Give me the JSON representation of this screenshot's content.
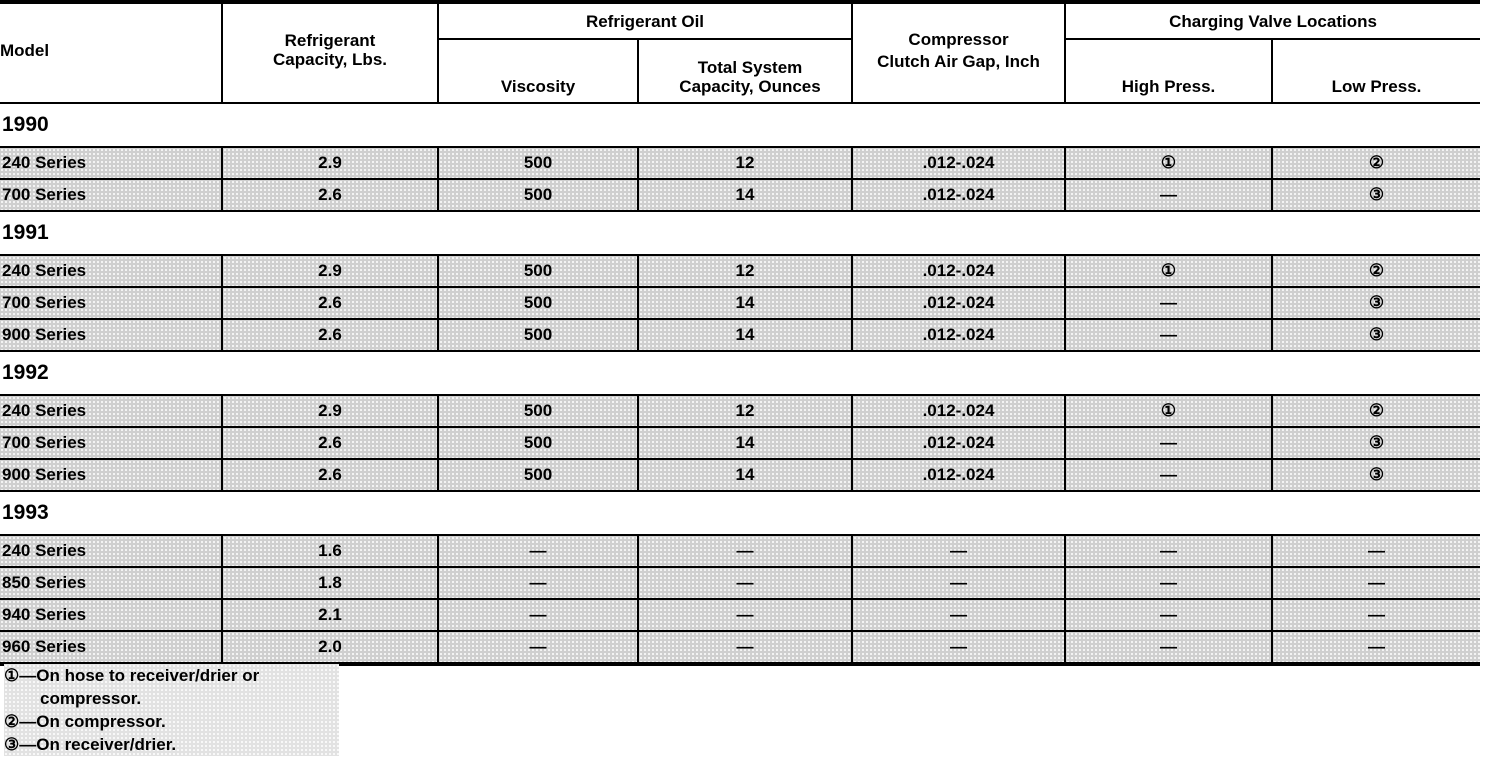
{
  "header": {
    "model": "Model",
    "refrigerant_capacity": "Refrigerant Capacity, Lbs.",
    "refrigerant_oil": "Refrigerant Oil",
    "viscosity": "Viscosity",
    "total_system_capacity": "Total System Capacity, Ounces",
    "compressor_line1": "Compressor",
    "compressor_line2": "Clutch Air Gap, Inch",
    "charging_valve_locations": "Charging Valve Locations",
    "high_press": "High Press.",
    "low_press": "Low Press."
  },
  "groups": [
    {
      "year": "1990",
      "rows": [
        [
          "240 Series",
          "2.9",
          "500",
          "12",
          ".012-.024",
          "①",
          "②"
        ],
        [
          "700 Series",
          "2.6",
          "500",
          "14",
          ".012-.024",
          "—",
          "③"
        ]
      ]
    },
    {
      "year": "1991",
      "rows": [
        [
          "240 Series",
          "2.9",
          "500",
          "12",
          ".012-.024",
          "①",
          "②"
        ],
        [
          "700 Series",
          "2.6",
          "500",
          "14",
          ".012-.024",
          "—",
          "③"
        ],
        [
          "900 Series",
          "2.6",
          "500",
          "14",
          ".012-.024",
          "—",
          "③"
        ]
      ]
    },
    {
      "year": "1992",
      "rows": [
        [
          "240 Series",
          "2.9",
          "500",
          "12",
          ".012-.024",
          "①",
          "②"
        ],
        [
          "700 Series",
          "2.6",
          "500",
          "14",
          ".012-.024",
          "—",
          "③"
        ],
        [
          "900 Series",
          "2.6",
          "500",
          "14",
          ".012-.024",
          "—",
          "③"
        ]
      ]
    },
    {
      "year": "1993",
      "rows": [
        [
          "240 Series",
          "1.6",
          "—",
          "—",
          "—",
          "—",
          "—"
        ],
        [
          "850 Series",
          "1.8",
          "—",
          "—",
          "—",
          "—",
          "—"
        ],
        [
          "940 Series",
          "2.1",
          "—",
          "—",
          "—",
          "—",
          "—"
        ],
        [
          "960 Series",
          "2.0",
          "—",
          "—",
          "—",
          "—",
          "—"
        ]
      ]
    }
  ],
  "footnotes": {
    "n1_line1": "①—On hose to receiver/drier or",
    "n1_line2": "compressor.",
    "n2": "②—On compressor.",
    "n3": "③—On receiver/drier."
  }
}
